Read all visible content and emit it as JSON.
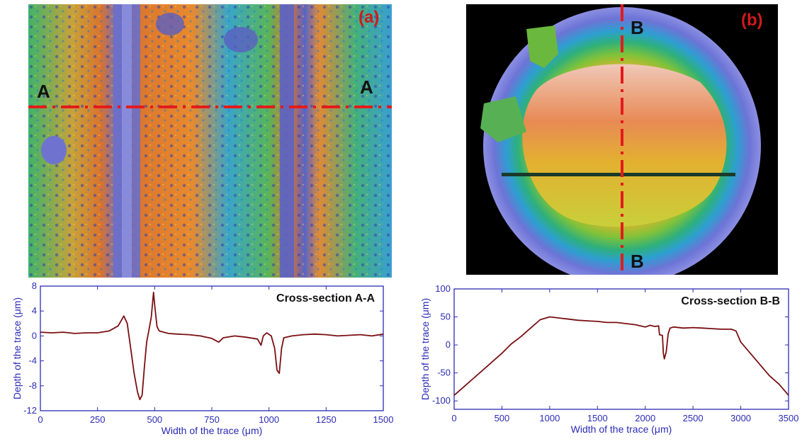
{
  "panels": [
    {
      "label": "(a)",
      "section_markers": [
        "A",
        "A"
      ],
      "colors": {
        "label": "#d11a1a",
        "section_line": "#e31b1b",
        "marker": "#111111"
      }
    },
    {
      "label": "(b)",
      "section_markers": [
        "B",
        "B"
      ],
      "colors": {
        "label": "#d11a1a",
        "section_line": "#e31b1b",
        "marker": "#111111"
      }
    }
  ],
  "chart_data": [
    {
      "type": "line",
      "title": "Cross-section A-A",
      "xlabel": "Width of the trace (μm)",
      "ylabel": "Depth of the trace (μm)",
      "xlim": [
        0,
        1500
      ],
      "ylim": [
        -12,
        8
      ],
      "xticks": [
        0,
        250,
        500,
        750,
        1000,
        1250,
        1500
      ],
      "yticks": [
        -12,
        -8,
        -4,
        0,
        4,
        8
      ],
      "grid": false,
      "colors": {
        "line": "#7a0f12",
        "axis": "#2b2bb5"
      },
      "series": [
        {
          "x": [
            0,
            50,
            100,
            150,
            200,
            250,
            300,
            340,
            365,
            380,
            395,
            410,
            425,
            435,
            445,
            455,
            465,
            475,
            485,
            495,
            500,
            510,
            520,
            540,
            560,
            600,
            650,
            700,
            750,
            780,
            800,
            850,
            900,
            950,
            965,
            975,
            990,
            1010,
            1025,
            1035,
            1045,
            1055,
            1065,
            1100,
            1150,
            1200,
            1250,
            1300,
            1350,
            1400,
            1450,
            1500
          ],
          "y": [
            0.6,
            0.5,
            0.6,
            0.4,
            0.5,
            0.5,
            0.8,
            1.6,
            3.2,
            2.0,
            -2.0,
            -6.0,
            -9.0,
            -10.2,
            -9.5,
            -5.0,
            -1.0,
            1.0,
            3.0,
            7.0,
            5.0,
            1.5,
            0.8,
            0.6,
            0.4,
            0.3,
            0.2,
            0.0,
            -0.4,
            -1.0,
            -0.3,
            0.0,
            -0.2,
            -0.5,
            -1.5,
            0.0,
            0.5,
            0.0,
            -2.0,
            -5.5,
            -6.0,
            -2.0,
            -0.3,
            0.0,
            0.2,
            0.3,
            0.2,
            0.0,
            0.1,
            0.2,
            0.0,
            0.3
          ]
        }
      ]
    },
    {
      "type": "line",
      "title": "Cross-section B-B",
      "xlabel": "Width of the trace (μm)",
      "ylabel": "Depth of the trace (μm)",
      "xlim": [
        0,
        3500
      ],
      "ylim": [
        -115,
        100
      ],
      "xticks": [
        0,
        500,
        1000,
        1500,
        2000,
        2500,
        3000,
        3500
      ],
      "yticks": [
        -100,
        -50,
        0,
        50,
        100
      ],
      "grid": false,
      "colors": {
        "line": "#7a0f12",
        "axis": "#2b2bb5"
      },
      "series": [
        {
          "x": [
            0,
            100,
            200,
            300,
            400,
            500,
            600,
            700,
            800,
            900,
            1000,
            1100,
            1200,
            1300,
            1400,
            1500,
            1600,
            1700,
            1800,
            1900,
            2000,
            2050,
            2100,
            2140,
            2150,
            2180,
            2190,
            2200,
            2220,
            2240,
            2260,
            2300,
            2400,
            2500,
            2600,
            2700,
            2800,
            2900,
            2950,
            3000,
            3100,
            3200,
            3300,
            3400,
            3500
          ],
          "y": [
            -90,
            -75,
            -60,
            -45,
            -30,
            -15,
            2,
            15,
            30,
            45,
            50,
            48,
            46,
            44,
            43,
            42,
            40,
            40,
            38,
            36,
            32,
            35,
            33,
            34,
            18,
            17,
            -15,
            -25,
            -12,
            20,
            30,
            32,
            30,
            31,
            30,
            29,
            28,
            28,
            25,
            5,
            -15,
            -35,
            -55,
            -70,
            -90
          ]
        }
      ]
    }
  ]
}
